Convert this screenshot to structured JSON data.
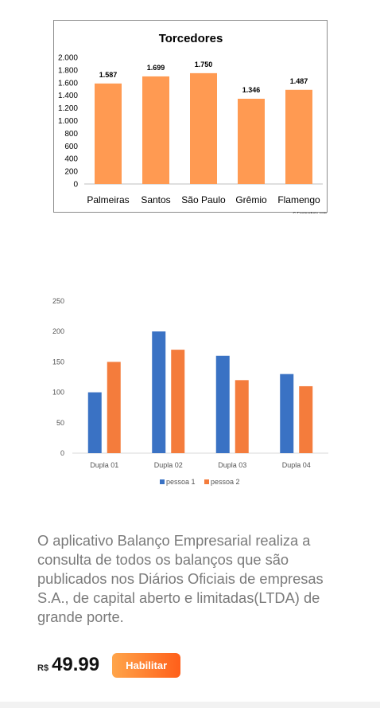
{
  "chart_data": [
    {
      "type": "bar",
      "title": "Torcedores",
      "categories": [
        "Palmeiras",
        "Santos",
        "São Paulo",
        "Grêmio",
        "Flamengo"
      ],
      "values": [
        1587,
        1699,
        1750,
        1346,
        1487
      ],
      "value_labels": [
        "1.587",
        "1.699",
        "1.750",
        "1.346",
        "1.487"
      ],
      "yticks": [
        0,
        200,
        400,
        600,
        800,
        1000,
        1200,
        1400,
        1600,
        1800,
        2000
      ],
      "ytick_labels": [
        "0",
        "200",
        "400",
        "600",
        "800",
        "1.000",
        "1.200",
        "1.400",
        "1.600",
        "1.800",
        "2.000"
      ],
      "ylim": [
        0,
        2000
      ],
      "grid": false,
      "color": "#ff9a52",
      "credit": "© Ensinarhoje.com"
    },
    {
      "type": "bar",
      "categories": [
        "Dupla 01",
        "Dupla 02",
        "Dupla 03",
        "Dupla 04"
      ],
      "series": [
        {
          "name": "pessoa 1",
          "values": [
            100,
            200,
            160,
            130
          ],
          "color": "#3a72c4"
        },
        {
          "name": "pessoa 2",
          "values": [
            150,
            170,
            120,
            110
          ],
          "color": "#f47c3c"
        }
      ],
      "yticks": [
        0,
        50,
        100,
        150,
        200,
        250
      ],
      "ylim": [
        0,
        250
      ],
      "grid": false,
      "legend": "bottom"
    }
  ],
  "description": "O aplicativo Balanço Empresarial realiza a consulta de todos os balanços que são publicados nos Diários Oficiais de empresas S.A., de capital aberto e limitadas(LTDA) de grande porte.",
  "price": {
    "currency": "R$",
    "amount": "49.99"
  },
  "cta_label": "Habilitar"
}
